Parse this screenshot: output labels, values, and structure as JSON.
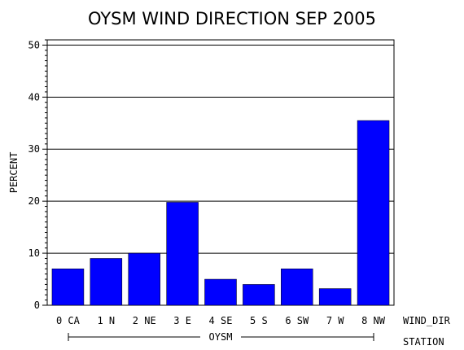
{
  "chart_data": {
    "type": "bar",
    "title": "OYSM WIND DIRECTION SEP 2005",
    "ylabel": "PERCENT",
    "xlabel": "WIND_DIR",
    "group_axis_label": "STATION",
    "group_name": "OYSM",
    "ylim": [
      0,
      51
    ],
    "yticks": [
      0,
      10,
      20,
      30,
      40,
      50
    ],
    "grid": true,
    "categories": [
      "0 CA",
      "1 N",
      "2 NE",
      "3 E",
      "4 SE",
      "5 S",
      "6 SW",
      "7 W",
      "8 NW"
    ],
    "series": [
      {
        "values": [
          7,
          9,
          10,
          19.8,
          5,
          4,
          7,
          3.2,
          35.5
        ]
      }
    ],
    "bar_color": "#0000ff"
  }
}
